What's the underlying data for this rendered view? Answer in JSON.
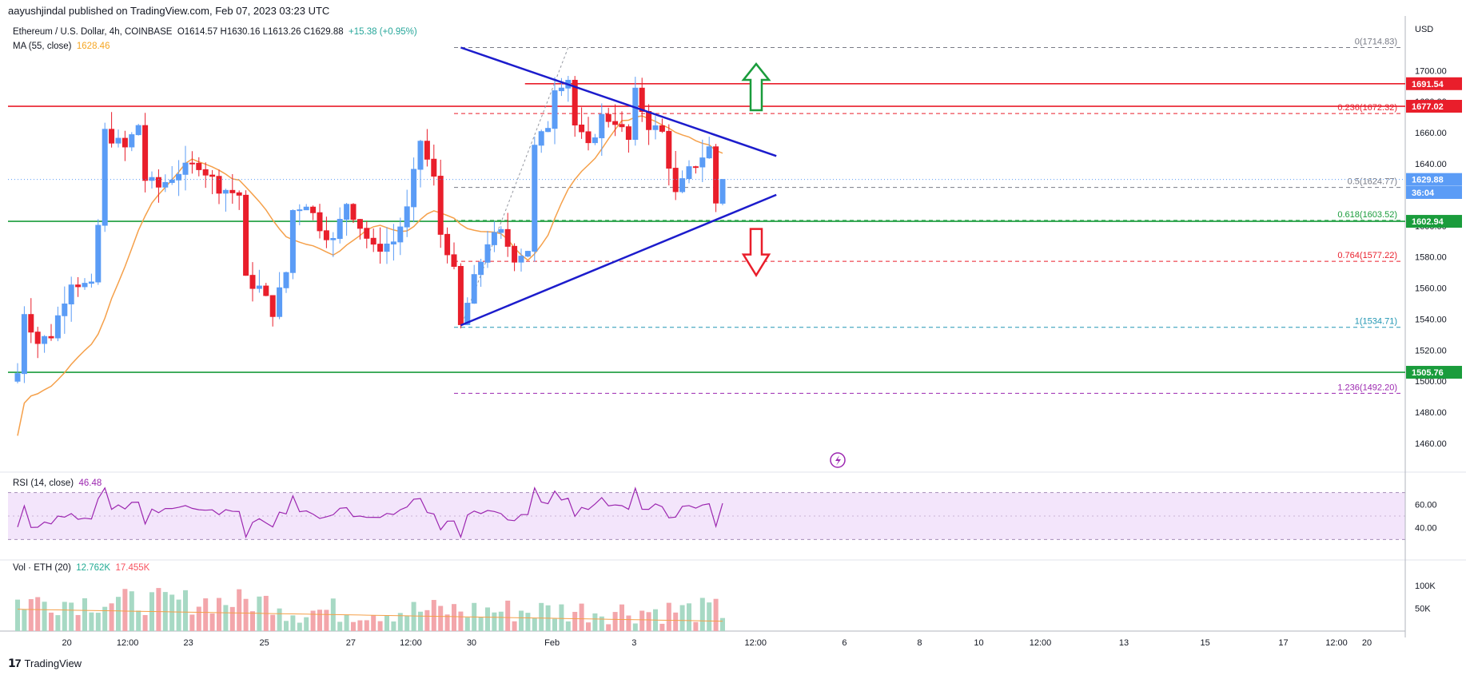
{
  "header": {
    "published": "aayushjindal published on TradingView.com, Feb 07, 2023 03:23 UTC",
    "symbol": "Ethereum / U.S. Dollar, 4h, COINBASE",
    "ohlc": "O1614.57  H1630.16  L1613.26  C1629.88",
    "change": "+15.38 (+0.95%)",
    "ma_label": "MA (55, close)",
    "ma_value": "1628.46",
    "rsi_label": "RSI (14, close)",
    "rsi_value": "46.48",
    "vol_label": "Vol · ETH (20)",
    "vol_value1": "12.762K",
    "vol_value2": "17.455K"
  },
  "footer": {
    "brand": "TradingView",
    "brand_icon": "tradingview-logo-icon"
  },
  "colors": {
    "up": "#5b9cf6",
    "down": "#e91e2b",
    "ma": "#f5a04a",
    "support": "#1a9c3c",
    "resistance": "#e91e2b",
    "trend": "#1c1ccc",
    "rsi": "#9c27b0"
  },
  "chart_data": {
    "type": "candlestick",
    "currency": "USD",
    "y_ticks": [
      "1700.00",
      "1680.00",
      "1660.00",
      "1640.00",
      "1620.00",
      "1600.00",
      "1580.00",
      "1560.00",
      "1540.00",
      "1520.00",
      "1500.00",
      "1480.00",
      "1460.00"
    ],
    "ylim": [
      1442,
      1730
    ],
    "x_ticks": [
      "20",
      "12:00",
      "23",
      "25",
      "27",
      "12:00",
      "30",
      "Feb",
      "3",
      "12:00",
      "6",
      "8",
      "10",
      "12:00",
      "13",
      "15",
      "17",
      "12:00",
      "20"
    ],
    "price_labels": [
      {
        "value": "1691.54",
        "price": 1691.54,
        "color": "#e91e2b"
      },
      {
        "value": "1677.02",
        "price": 1677.02,
        "color": "#e91e2b"
      },
      {
        "value": "1629.88",
        "price": 1629.88,
        "color": "#5b9cf6"
      },
      {
        "value": "36:04",
        "price": 1621.5,
        "color": "#5b9cf6"
      },
      {
        "value": "1602.94",
        "price": 1602.94,
        "color": "#1a9c3c"
      },
      {
        "value": "1505.76",
        "price": 1505.76,
        "color": "#1a9c3c"
      }
    ],
    "horizontal_levels": [
      {
        "price": 1691.54,
        "color": "#e91e2b",
        "x_start": 0.37
      },
      {
        "price": 1677.02,
        "color": "#e91e2b",
        "x_start": 0
      },
      {
        "price": 1602.94,
        "color": "#1a9c3c",
        "x_start": 0
      },
      {
        "price": 1505.76,
        "color": "#1a9c3c",
        "x_start": 0
      }
    ],
    "fibonacci": [
      {
        "label": "0(1714.83)",
        "price": 1714.83,
        "color": "#787b86"
      },
      {
        "label": "0.236(1672.32)",
        "price": 1672.32,
        "color": "#e91e2b"
      },
      {
        "label": "0.5(1624.77)",
        "price": 1624.77,
        "color": "#787b86"
      },
      {
        "label": "0.618(1603.52)",
        "price": 1603.52,
        "color": "#1a9c3c"
      },
      {
        "label": "0.764(1577.22)",
        "price": 1577.22,
        "color": "#e91e2b"
      },
      {
        "label": "1(1534.71)",
        "price": 1534.71,
        "color": "#2196b3"
      },
      {
        "label": "1.236(1492.20)",
        "price": 1492.2,
        "color": "#9c27b0"
      }
    ],
    "trendlines": [
      {
        "from": [
          66,
          1714.83
        ],
        "to": [
          113,
          1645
        ]
      },
      {
        "from": [
          66,
          1536
        ],
        "to": [
          113,
          1620
        ]
      }
    ],
    "candles": [],
    "rsi": {
      "upper": 70,
      "lower": 30,
      "ticks": [
        "60.00",
        "40.00"
      ],
      "values": []
    },
    "volume": {
      "ticks": [
        "100K",
        "50K"
      ]
    }
  }
}
